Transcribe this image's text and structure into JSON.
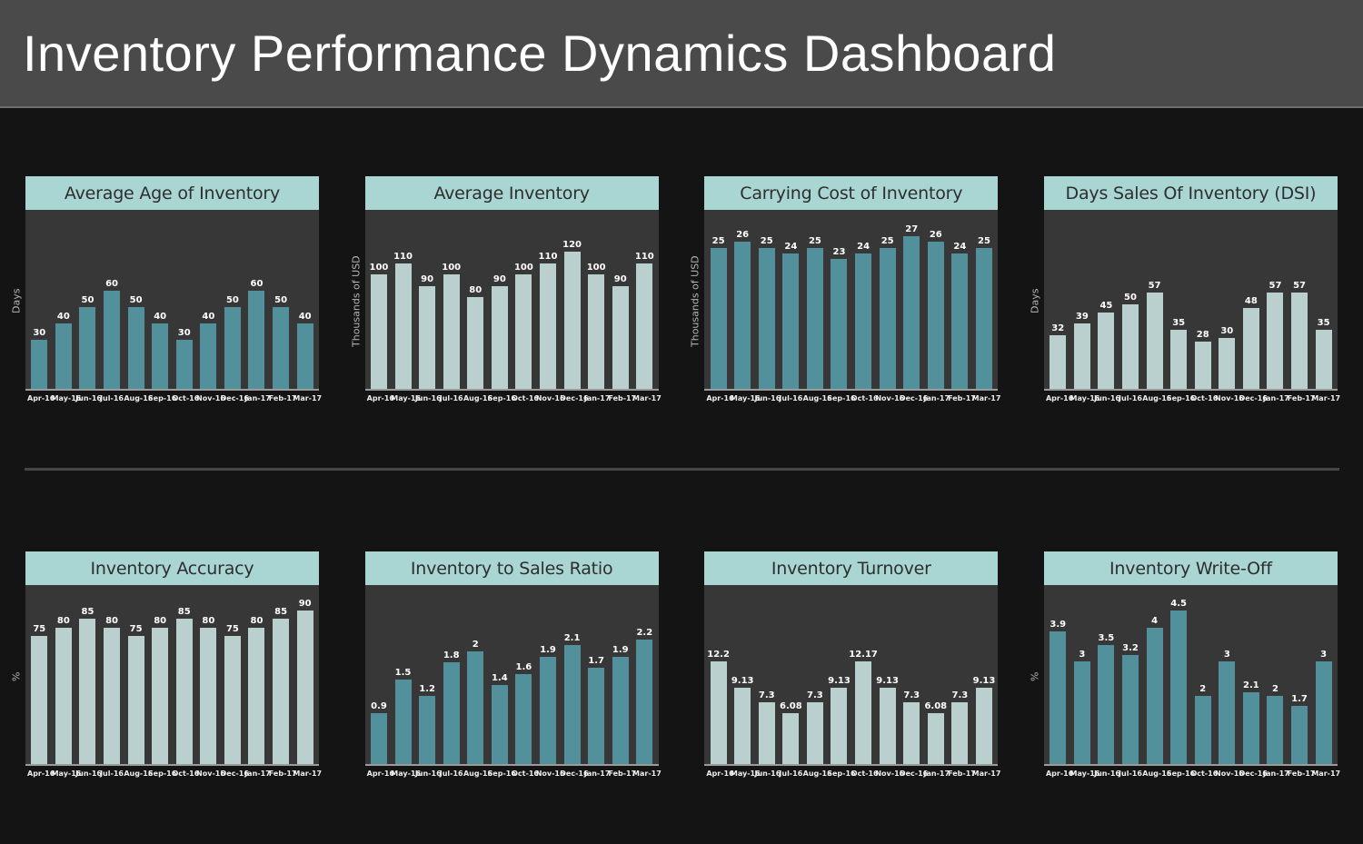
{
  "header": {
    "title": "Inventory Performance Dynamics Dashboard"
  },
  "palette": {
    "page_bg": "#141414",
    "header_bg": "#4a4a4a",
    "header_border": "#6e6e6e",
    "header_text": "#ffffff",
    "chart_title_bg": "#a9d6d2",
    "chart_title_text": "#2e2e2e",
    "plot_bg": "#373737",
    "axis_line": "#9a9a9a",
    "teal_bar": "#52909b",
    "light_bar": "#b9d0cf",
    "value_label": "#ffffff",
    "tick_label": "#ededed",
    "y_axis_label": "#b5b5b5",
    "divider": "#464646"
  },
  "chart_data": [
    {
      "type": "bar",
      "title": "Average Age of Inventory",
      "ylabel": "Days",
      "categories": [
        "Apr-16",
        "May-16",
        "Jun-16",
        "Jul-16",
        "Aug-16",
        "Sep-16",
        "Oct-16",
        "Nov-16",
        "Dec-16",
        "Jan-17",
        "Feb-17",
        "Mar-17"
      ],
      "values": [
        30,
        40,
        50,
        60,
        50,
        40,
        30,
        40,
        50,
        60,
        50,
        40
      ],
      "ylim": [
        0,
        110
      ],
      "bar_color": "#52909b",
      "grid": false,
      "value_labels": true
    },
    {
      "type": "bar",
      "title": "Average Inventory",
      "ylabel": "Thousands of USD",
      "categories": [
        "Apr-16",
        "May-16",
        "Jun-16",
        "Jul-16",
        "Aug-16",
        "Sep-16",
        "Oct-16",
        "Nov-16",
        "Dec-16",
        "Jan-17",
        "Feb-17",
        "Mar-17"
      ],
      "values": [
        100,
        110,
        90,
        100,
        80,
        90,
        100,
        110,
        120,
        100,
        90,
        110
      ],
      "ylim": [
        0,
        158
      ],
      "bar_color": "#b9d0cf",
      "grid": false,
      "value_labels": true
    },
    {
      "type": "bar",
      "title": "Carrying Cost of Inventory",
      "ylabel": "Thousands of USD",
      "categories": [
        "Apr-16",
        "May-16",
        "Jun-16",
        "Jul-16",
        "Aug-16",
        "Sep-16",
        "Oct-16",
        "Nov-16",
        "Dec-16",
        "Jan-17",
        "Feb-17",
        "Mar-17"
      ],
      "values": [
        25,
        26,
        25,
        24,
        25,
        23,
        24,
        25,
        27,
        26,
        24,
        25
      ],
      "ylim": [
        0,
        32
      ],
      "bar_color": "#52909b",
      "grid": false,
      "value_labels": true
    },
    {
      "type": "bar",
      "title": "Days Sales Of Inventory (DSI)",
      "ylabel": "Days",
      "categories": [
        "Apr-16",
        "May-16",
        "Jun-16",
        "Jul-16",
        "Aug-16",
        "Sep-16",
        "Oct-16",
        "Nov-16",
        "Dec-16",
        "Jan-17",
        "Feb-17",
        "Mar-17"
      ],
      "values": [
        32,
        39,
        45,
        50,
        57,
        35,
        28,
        30,
        48,
        57,
        57,
        35
      ],
      "ylim": [
        0,
        107
      ],
      "bar_color": "#b9d0cf",
      "grid": false,
      "value_labels": true
    },
    {
      "type": "bar",
      "title": "Inventory Accuracy",
      "ylabel": "%",
      "categories": [
        "Apr-16",
        "May-16",
        "Jun-16",
        "Jul-16",
        "Aug-16",
        "Sep-16",
        "Oct-16",
        "Nov-16",
        "Dec-16",
        "Jan-17",
        "Feb-17",
        "Mar-17"
      ],
      "values": [
        75,
        80,
        85,
        80,
        75,
        80,
        85,
        80,
        75,
        80,
        85,
        90
      ],
      "ylim": [
        0,
        106
      ],
      "bar_color": "#b9d0cf",
      "grid": false,
      "value_labels": true
    },
    {
      "type": "bar",
      "title": "Inventory to Sales Ratio",
      "ylabel": "",
      "categories": [
        "Apr-16",
        "May-16",
        "Jun-16",
        "Jul-16",
        "Aug-16",
        "Sep-16",
        "Oct-16",
        "Nov-16",
        "Dec-16",
        "Jan-17",
        "Feb-17",
        "Mar-17"
      ],
      "values": [
        0.9,
        1.5,
        1.2,
        1.8,
        2,
        1.4,
        1.6,
        1.9,
        2.1,
        1.7,
        1.9,
        2.2
      ],
      "ylim": [
        0,
        3.2
      ],
      "bar_color": "#52909b",
      "grid": false,
      "value_labels": true
    },
    {
      "type": "bar",
      "title": "Inventory Turnover",
      "ylabel": "",
      "categories": [
        "Apr-16",
        "May-16",
        "Jun-16",
        "Jul-16",
        "Aug-16",
        "Sep-16",
        "Oct-16",
        "Nov-16",
        "Dec-16",
        "Jan-17",
        "Feb-17",
        "Mar-17"
      ],
      "values": [
        12.2,
        9.13,
        7.3,
        6.08,
        7.3,
        9.13,
        12.17,
        9.13,
        7.3,
        6.08,
        7.3,
        9.13
      ],
      "ylim": [
        0,
        21.5
      ],
      "bar_color": "#b9d0cf",
      "grid": false,
      "value_labels": true
    },
    {
      "type": "bar",
      "title": "Inventory Write-Off",
      "ylabel": "%",
      "categories": [
        "Apr-16",
        "May-16",
        "Jun-16",
        "Jul-16",
        "Aug-16",
        "Sep-16",
        "Oct-16",
        "Nov-16",
        "Dec-16",
        "Jan-17",
        "Feb-17",
        "Mar-17"
      ],
      "values": [
        3.9,
        3,
        3.5,
        3.2,
        4,
        4.5,
        2,
        3,
        2.1,
        2,
        1.7,
        3
      ],
      "ylim": [
        0,
        5.3
      ],
      "bar_color": "#52909b",
      "grid": false,
      "value_labels": true
    }
  ]
}
